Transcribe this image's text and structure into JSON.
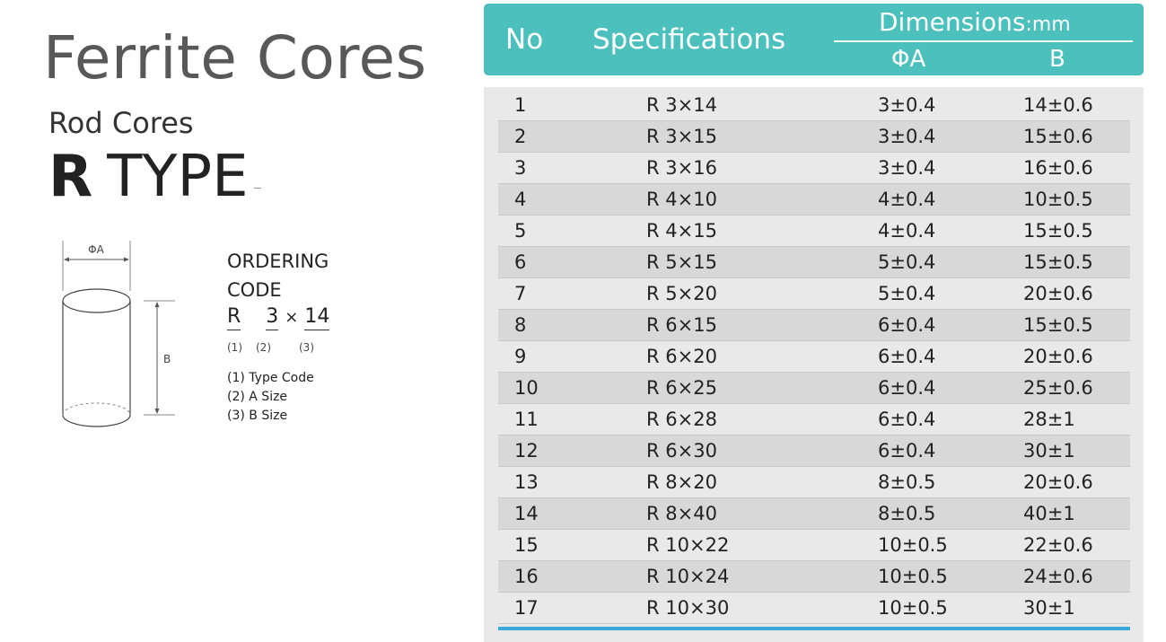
{
  "left": {
    "title": "Ferrite Cores",
    "subtitle": "Rod Cores",
    "type_bold": "R",
    "type_rest": "TYPE",
    "diagram": {
      "label_a": "ΦA",
      "label_b": "B"
    },
    "ordering": {
      "line1": "ORDERING",
      "line2": "CODE",
      "code_parts": [
        "R",
        "3",
        "×",
        "14"
      ],
      "indices": [
        "(1)",
        "(2)",
        "(3)"
      ],
      "legend": [
        "(1) Type Code",
        "(2) A Size",
        "(3) B Size"
      ]
    }
  },
  "table": {
    "headers": {
      "no": "No",
      "spec": "Specifications",
      "dimensions": "Dimensions",
      "unit": ":mm",
      "a": "ΦA",
      "b": "B"
    },
    "rows": [
      {
        "no": "1",
        "spec": "R  3×14",
        "a": "3±0.4",
        "b": "14±0.6"
      },
      {
        "no": "2",
        "spec": "R  3×15",
        "a": "3±0.4",
        "b": "15±0.6"
      },
      {
        "no": "3",
        "spec": "R  3×16",
        "a": "3±0.4",
        "b": "16±0.6"
      },
      {
        "no": "4",
        "spec": "R  4×10",
        "a": "4±0.4",
        "b": "10±0.5"
      },
      {
        "no": "5",
        "spec": "R  4×15",
        "a": "4±0.4",
        "b": "15±0.5"
      },
      {
        "no": "6",
        "spec": "R  5×15",
        "a": "5±0.4",
        "b": "15±0.5"
      },
      {
        "no": "7",
        "spec": "R  5×20",
        "a": "5±0.4",
        "b": "20±0.6"
      },
      {
        "no": "8",
        "spec": "R  6×15",
        "a": "6±0.4",
        "b": "15±0.5"
      },
      {
        "no": "9",
        "spec": "R  6×20",
        "a": "6±0.4",
        "b": "20±0.6"
      },
      {
        "no": "10",
        "spec": "R  6×25",
        "a": "6±0.4",
        "b": "25±0.6"
      },
      {
        "no": "11",
        "spec": "R  6×28",
        "a": "6±0.4",
        "b": "28±1"
      },
      {
        "no": "12",
        "spec": "R  6×30",
        "a": "6±0.4",
        "b": "30±1"
      },
      {
        "no": "13",
        "spec": "R  8×20",
        "a": "8±0.5",
        "b": "20±0.6"
      },
      {
        "no": "14",
        "spec": "R  8×40",
        "a": "8±0.5",
        "b": "40±1"
      },
      {
        "no": "15",
        "spec": "R  10×22",
        "a": "10±0.5",
        "b": "22±0.6"
      },
      {
        "no": "16",
        "spec": "R  10×24",
        "a": "10±0.5",
        "b": "24±0.6"
      },
      {
        "no": "17",
        "spec": "R  10×30",
        "a": "10±0.5",
        "b": "30±1"
      }
    ]
  },
  "colors": {
    "header_teal": "#4bc0bd",
    "row_alt": "#d8d8d9",
    "bottom_rule": "#3aa9d9"
  }
}
